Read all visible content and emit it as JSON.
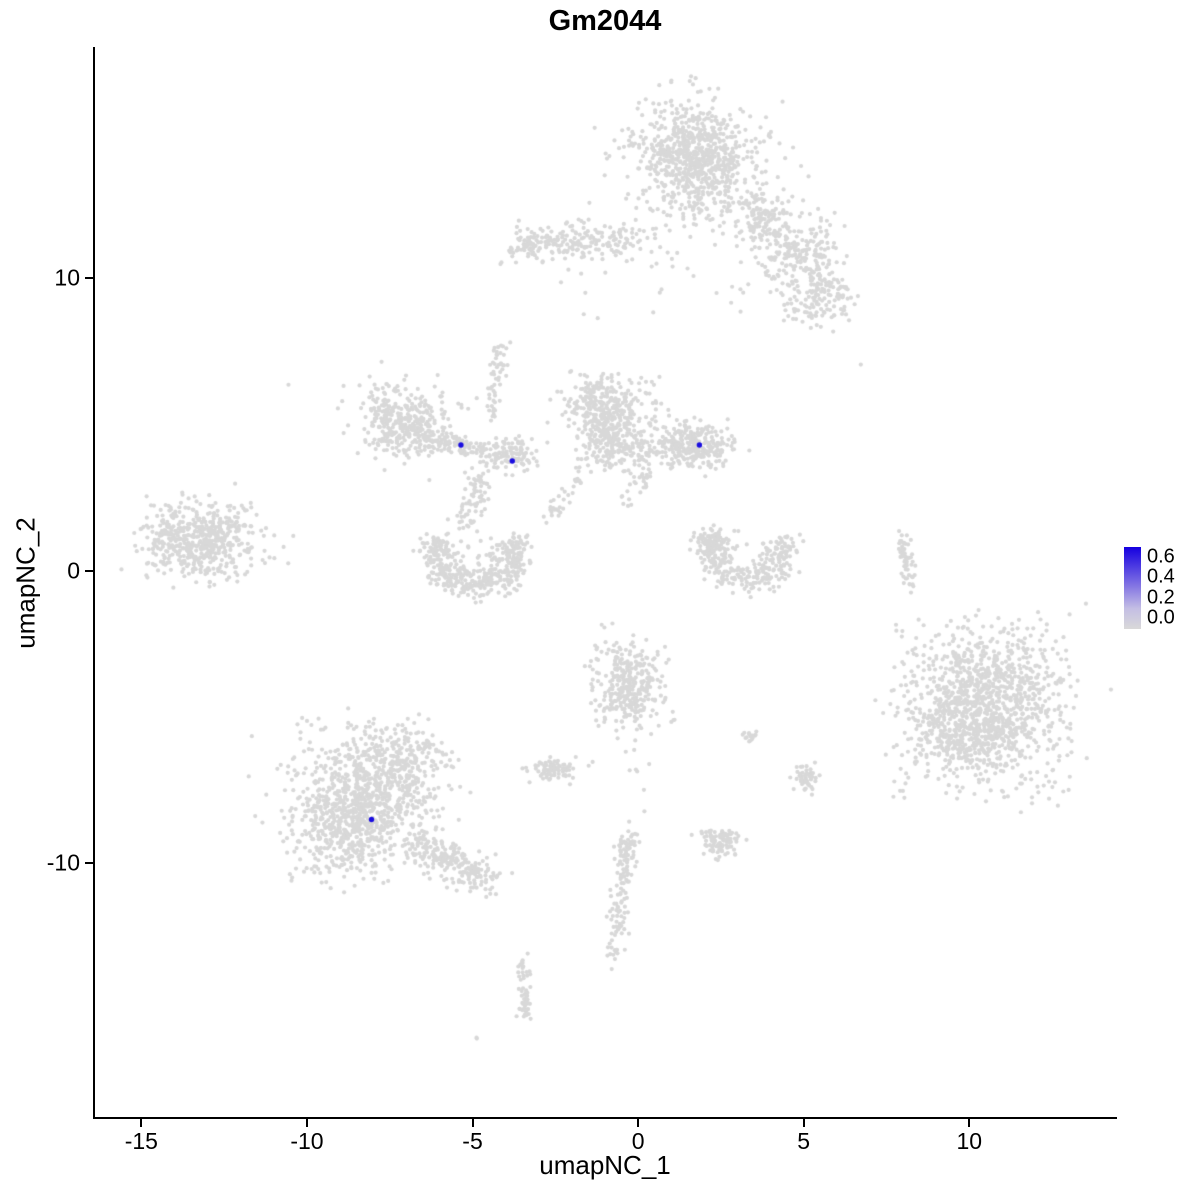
{
  "chart_data": {
    "type": "scatter",
    "title": "Gm2044",
    "xlabel": "umapNC_1",
    "ylabel": "umapNC_2",
    "x_ticks": [
      -15,
      -10,
      -5,
      0,
      5,
      10
    ],
    "y_ticks": [
      -10,
      0,
      10
    ],
    "x_domain": [
      -16.4,
      14.4
    ],
    "y_domain": [
      -18.7,
      17.9
    ],
    "grid": false,
    "point_color_low": "#D8D8D8",
    "point_color_high": "#1A0DE0",
    "legend": {
      "position": "right",
      "ticks": [
        "0.6",
        "0.4",
        "0.2",
        "0.0"
      ],
      "gradient_stops": [
        "#1500E0",
        "#7E6FE3",
        "#C4BEE4",
        "#D9D9D9"
      ]
    },
    "highlighted_points": [
      {
        "x": -5.35,
        "y": 4.3,
        "value": 0.6
      },
      {
        "x": -3.8,
        "y": 3.75,
        "value": 0.6
      },
      {
        "x": 1.85,
        "y": 4.3,
        "value": 0.65
      },
      {
        "x": -8.05,
        "y": -8.5,
        "value": 0.6
      }
    ],
    "clusters": [
      {
        "name": "top-main",
        "type": "gauss",
        "cx": 1.7,
        "cy": 14.1,
        "sx": 0.85,
        "sy": 0.95,
        "n": 720
      },
      {
        "name": "top-main-fringe",
        "type": "gauss",
        "cx": 1.9,
        "cy": 13.7,
        "sx": 1.35,
        "sy": 1.3,
        "n": 130
      },
      {
        "name": "top-right-lobe-1",
        "type": "gauss",
        "cx": 3.8,
        "cy": 12.1,
        "sx": 0.45,
        "sy": 0.5,
        "n": 110
      },
      {
        "name": "top-right-lobe-2",
        "type": "gauss",
        "cx": 4.8,
        "cy": 10.9,
        "sx": 0.6,
        "sy": 0.55,
        "n": 170
      },
      {
        "name": "top-right-lobe-3",
        "type": "gauss",
        "cx": 5.5,
        "cy": 9.4,
        "sx": 0.5,
        "sy": 0.5,
        "n": 130
      },
      {
        "name": "top-right-sparse",
        "type": "uniform",
        "x0": 3.2,
        "x1": 6.3,
        "y0": 8.6,
        "y1": 12.8,
        "n": 55
      },
      {
        "name": "top-band",
        "type": "gauss",
        "cx": -1.7,
        "cy": 11.25,
        "sx": 1.1,
        "sy": 0.28,
        "n": 170
      },
      {
        "name": "top-band-knot",
        "type": "gauss",
        "cx": -3.2,
        "cy": 11.05,
        "sx": 0.32,
        "sy": 0.3,
        "n": 60
      },
      {
        "name": "top-sparse",
        "type": "uniform",
        "x0": -3.0,
        "x1": 3.3,
        "y0": 8.6,
        "y1": 12.4,
        "n": 32
      },
      {
        "name": "midleft-blob",
        "type": "gauss",
        "cx": -7.1,
        "cy": 5.1,
        "sx": 0.75,
        "sy": 0.6,
        "n": 320
      },
      {
        "name": "midleft-fringe",
        "type": "uniform",
        "x0": -8.2,
        "x1": -5.8,
        "y0": 3.9,
        "y1": 6.4,
        "n": 55
      },
      {
        "name": "midleft-arm",
        "type": "line",
        "x0": -6.3,
        "y0": 4.5,
        "x1": -4.1,
        "y1": 3.95,
        "jx": 0.22,
        "jy": 0.16,
        "n": 110
      },
      {
        "name": "midleft-knot",
        "type": "gauss",
        "cx": -3.75,
        "cy": 3.95,
        "sx": 0.35,
        "sy": 0.3,
        "n": 90
      },
      {
        "name": "midleft-streak-up",
        "type": "line",
        "x0": -4.45,
        "y0": 5.3,
        "x1": -4.1,
        "y1": 7.8,
        "jx": 0.12,
        "jy": 0.28,
        "n": 55
      },
      {
        "name": "midleft-arc-down",
        "type": "line",
        "x0": -4.65,
        "y0": 3.3,
        "x1": -5.15,
        "y1": 1.7,
        "jx": 0.18,
        "jy": 0.3,
        "n": 65
      },
      {
        "name": "center-top",
        "type": "gauss",
        "cx": -1.0,
        "cy": 5.6,
        "sx": 0.62,
        "sy": 0.55,
        "n": 280
      },
      {
        "name": "center-low",
        "type": "gauss",
        "cx": -0.7,
        "cy": 4.3,
        "sx": 0.55,
        "sy": 0.5,
        "n": 180
      },
      {
        "name": "center-fringe",
        "type": "uniform",
        "x0": -2.0,
        "x1": 0.6,
        "y0": 3.3,
        "y1": 6.8,
        "n": 55
      },
      {
        "name": "center-tail",
        "type": "line",
        "x0": -1.7,
        "y0": 3.1,
        "x1": -2.7,
        "y1": 1.8,
        "jx": 0.15,
        "jy": 0.2,
        "n": 32
      },
      {
        "name": "rightcenter-blob",
        "type": "gauss",
        "cx": 1.55,
        "cy": 4.25,
        "sx": 0.6,
        "sy": 0.36,
        "n": 260
      },
      {
        "name": "rightcenter-fringe",
        "type": "uniform",
        "x0": 0.3,
        "x1": 2.9,
        "y0": 3.4,
        "y1": 5.2,
        "n": 45
      },
      {
        "name": "rightcenter-tail",
        "type": "line",
        "x0": 0.4,
        "y0": 3.4,
        "x1": -0.4,
        "y1": 2.3,
        "jx": 0.15,
        "jy": 0.2,
        "n": 26
      },
      {
        "name": "u-cluster",
        "type": "arc",
        "cx": -4.9,
        "cy": 0.7,
        "r": 1.2,
        "a0": 160,
        "a1": 380,
        "th": 0.55,
        "n": 420
      },
      {
        "name": "u-cluster-sparse",
        "type": "uniform",
        "x0": -6.4,
        "x1": -3.4,
        "y0": -0.9,
        "y1": 1.8,
        "n": 45
      },
      {
        "name": "left-cluster",
        "type": "gauss",
        "cx": -13.3,
        "cy": 1.0,
        "sx": 0.8,
        "sy": 0.6,
        "n": 460
      },
      {
        "name": "left-cluster-fringe",
        "type": "uniform",
        "x0": -14.9,
        "x1": -11.6,
        "y0": -0.5,
        "y1": 2.6,
        "n": 85
      },
      {
        "name": "left-outlier-dots",
        "type": "uniform",
        "x0": -11.5,
        "x1": -10.4,
        "y0": 0.2,
        "y1": 1.5,
        "n": 7
      },
      {
        "name": "crescent",
        "type": "arc",
        "cx": 3.3,
        "cy": 0.75,
        "r": 1.05,
        "a0": 150,
        "a1": 385,
        "th": 0.5,
        "n": 300
      },
      {
        "name": "crescent-knot",
        "type": "gauss",
        "cx": 2.25,
        "cy": 1.0,
        "sx": 0.3,
        "sy": 0.26,
        "n": 55
      },
      {
        "name": "right-streak",
        "type": "line",
        "x0": 7.95,
        "y0": 1.35,
        "x1": 8.2,
        "y1": -0.6,
        "jx": 0.1,
        "jy": 0.15,
        "n": 55
      },
      {
        "name": "right-big",
        "type": "gauss",
        "cx": 10.6,
        "cy": -4.5,
        "sx": 1.1,
        "sy": 1.15,
        "n": 900
      },
      {
        "name": "right-big-2",
        "type": "gauss",
        "cx": 9.8,
        "cy": -5.6,
        "sx": 0.75,
        "sy": 0.75,
        "n": 280
      },
      {
        "name": "right-big-fringe",
        "type": "uniform",
        "x0": 7.6,
        "x1": 13.2,
        "y0": -7.9,
        "y1": -1.6,
        "n": 170
      },
      {
        "name": "bottomleft-big",
        "type": "gauss",
        "cx": -8.6,
        "cy": -8.3,
        "sx": 0.95,
        "sy": 1.0,
        "n": 760
      },
      {
        "name": "bottomleft-2",
        "type": "gauss",
        "cx": -7.3,
        "cy": -6.7,
        "sx": 0.8,
        "sy": 0.7,
        "n": 300
      },
      {
        "name": "bottomleft-fringe",
        "type": "uniform",
        "x0": -10.6,
        "x1": -5.9,
        "y0": -10.4,
        "y1": -4.9,
        "n": 140
      },
      {
        "name": "bottomleft-tail",
        "type": "line",
        "x0": -6.6,
        "y0": -9.3,
        "x1": -4.4,
        "y1": -10.7,
        "jx": 0.35,
        "jy": 0.3,
        "n": 230
      },
      {
        "name": "centerbottom-blob",
        "type": "gauss",
        "cx": -0.3,
        "cy": -3.9,
        "sx": 0.5,
        "sy": 0.66,
        "n": 300
      },
      {
        "name": "centerbottom-fringe",
        "type": "uniform",
        "x0": -1.6,
        "x1": 1.2,
        "y0": -5.6,
        "y1": -2.5,
        "n": 50
      },
      {
        "name": "small-blob-left",
        "type": "gauss",
        "cx": -2.5,
        "cy": -6.8,
        "sx": 0.36,
        "sy": 0.18,
        "n": 80
      },
      {
        "name": "small-blob-right",
        "type": "gauss",
        "cx": 5.05,
        "cy": -7.1,
        "sx": 0.2,
        "sy": 0.22,
        "n": 55
      },
      {
        "name": "tiny-blob-mid",
        "type": "gauss",
        "cx": 3.35,
        "cy": -5.65,
        "sx": 0.15,
        "sy": 0.12,
        "n": 16
      },
      {
        "name": "small-blob-p",
        "type": "gauss",
        "cx": 2.5,
        "cy": -9.25,
        "sx": 0.33,
        "sy": 0.3,
        "n": 95
      },
      {
        "name": "bottom-streak",
        "type": "line",
        "x0": -0.3,
        "y0": -9.2,
        "x1": -0.75,
        "y1": -13.1,
        "jx": 0.13,
        "jy": 0.3,
        "n": 115
      },
      {
        "name": "bottom-streak-knot",
        "type": "gauss",
        "cx": -0.35,
        "cy": -9.25,
        "sx": 0.22,
        "sy": 0.2,
        "n": 28
      },
      {
        "name": "bottom-streak-2",
        "type": "line",
        "x0": -3.5,
        "y0": -13.3,
        "x1": -3.35,
        "y1": -15.7,
        "jx": 0.1,
        "jy": 0.2,
        "n": 58
      },
      {
        "name": "bottom-dots",
        "type": "uniform",
        "x0": -5.0,
        "x1": -4.8,
        "y0": -16.1,
        "y1": -15.9,
        "n": 2
      },
      {
        "name": "mid-sparse-column",
        "type": "uniform",
        "x0": -0.45,
        "x1": 0.4,
        "y0": -8.6,
        "y1": -6.0,
        "n": 9
      },
      {
        "name": "single-dot-left",
        "type": "uniform",
        "x0": -10.7,
        "x1": -10.5,
        "y0": 6.2,
        "y1": 6.4,
        "n": 1
      },
      {
        "name": "single-dot-right",
        "type": "uniform",
        "x0": 6.6,
        "x1": 6.75,
        "y0": 6.9,
        "y1": 7.05,
        "n": 1
      },
      {
        "name": "sparse-between-e-g",
        "type": "uniform",
        "x0": -5.3,
        "x1": -4.2,
        "y0": 1.8,
        "y1": 3.2,
        "n": 10
      }
    ]
  }
}
